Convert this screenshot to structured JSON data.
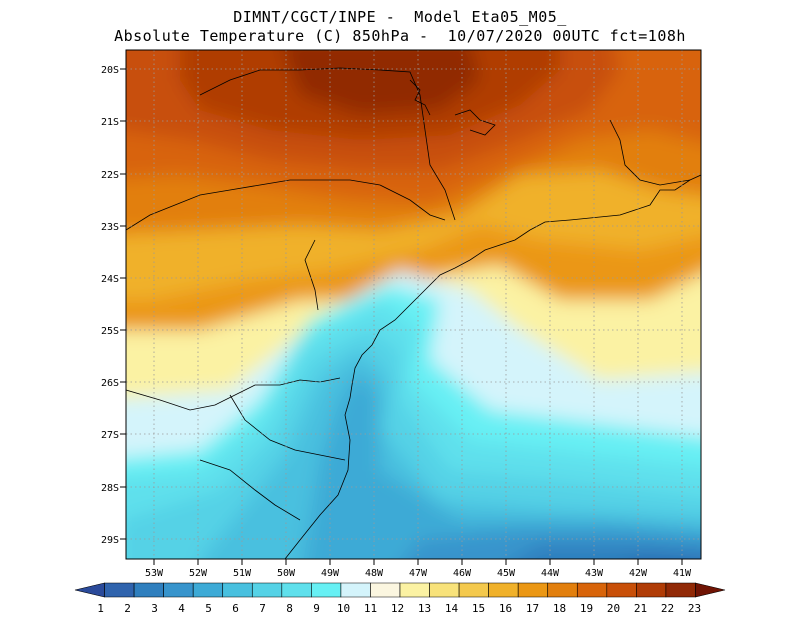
{
  "header": {
    "title_line1": "DIMNT/CGCT/INPE -  Model Eta05_M05_",
    "title_line2": "Absolute Temperature (C) 850hPa -  10/07/2020 00UTC fct=108h"
  },
  "map": {
    "lat_labels": [
      "20S",
      "21S",
      "22S",
      "23S",
      "24S",
      "25S",
      "26S",
      "27S",
      "28S",
      "29S"
    ],
    "lon_labels": [
      "53W",
      "52W",
      "51W",
      "50W",
      "49W",
      "48W",
      "47W",
      "46W",
      "45W",
      "44W",
      "43W",
      "42W",
      "41W"
    ],
    "grid": true
  },
  "colorbar": {
    "labels": [
      "1",
      "2",
      "3",
      "4",
      "5",
      "6",
      "7",
      "8",
      "9",
      "10",
      "11",
      "12",
      "13",
      "14",
      "15",
      "16",
      "17",
      "18",
      "19",
      "20",
      "21",
      "22",
      "23"
    ],
    "colors": [
      "#2a4a9a",
      "#2f63ad",
      "#2f7fbe",
      "#3794cc",
      "#3daad6",
      "#48c0df",
      "#55d2e6",
      "#5fe0ec",
      "#67f0f4",
      "#d4f4fb",
      "#fbf6e0",
      "#fbf2a3",
      "#f8e27a",
      "#f4c94d",
      "#f0b12a",
      "#eb9714",
      "#e27f0d",
      "#d8640a",
      "#c84f08",
      "#b03c06",
      "#912906",
      "#701404"
    ]
  }
}
